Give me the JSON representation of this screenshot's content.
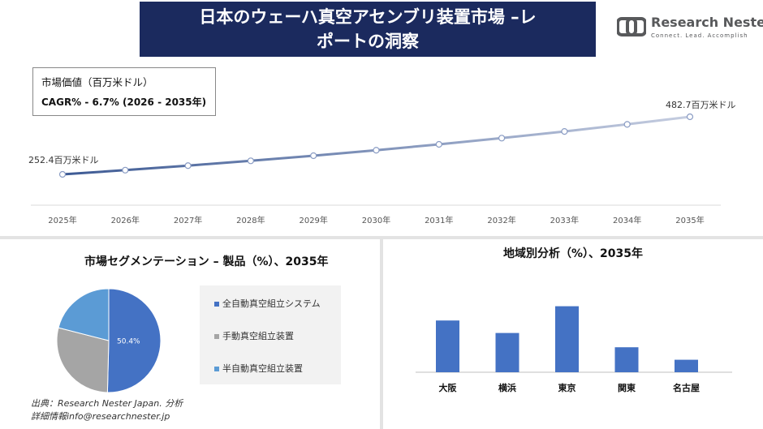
{
  "header": {
    "title_line1": "日本のウェーハ真空アセンブリ装置市場 –レ",
    "title_line2": "ポートの洞察"
  },
  "brand": {
    "name": "Research Nester",
    "tagline": "Connect. Lead. Accomplish"
  },
  "info": {
    "market_value_label": "市場価値（百万米ドル）",
    "cagr": "CAGR% - 6.7% (2026 - 2035年)"
  },
  "chart_data": [
    {
      "type": "line",
      "x": [
        "2025年",
        "2026年",
        "2027年",
        "2028年",
        "2029年",
        "2030年",
        "2031年",
        "2032年",
        "2033年",
        "2034年",
        "2035年"
      ],
      "values": [
        252.4,
        269.3,
        287.3,
        306.6,
        327.1,
        349.0,
        372.4,
        397.4,
        424.0,
        452.4,
        482.7
      ],
      "start_label": "252.4百万米ドル",
      "end_label": "482.7百万米ドル",
      "colors": [
        "#3d5a94",
        "#c5cde0"
      ]
    },
    {
      "type": "pie",
      "title": "市場セグメンテーション – 製品（%）、2035年",
      "slices": [
        {
          "name": "全自動真空組立システム",
          "value": 50.4,
          "color": "#4472c4",
          "label": "50.4%"
        },
        {
          "name": "手動真空組立装置",
          "value": 28.6,
          "color": "#a5a5a5",
          "label": ""
        },
        {
          "name": "半自動真空組立装置",
          "value": 21.0,
          "color": "#5b9bd5",
          "label": ""
        }
      ]
    },
    {
      "type": "bar",
      "title": "地域別分析（%）、2035年",
      "categories": [
        "大阪",
        "横浜",
        "東京",
        "関東",
        "名古屋"
      ],
      "values": [
        29,
        22,
        37,
        14,
        7
      ],
      "color": "#4472c4"
    }
  ],
  "source": {
    "line1": "出典：Research Nester Japan. 分析",
    "line2": "詳細情報info@researchnester.jp"
  }
}
